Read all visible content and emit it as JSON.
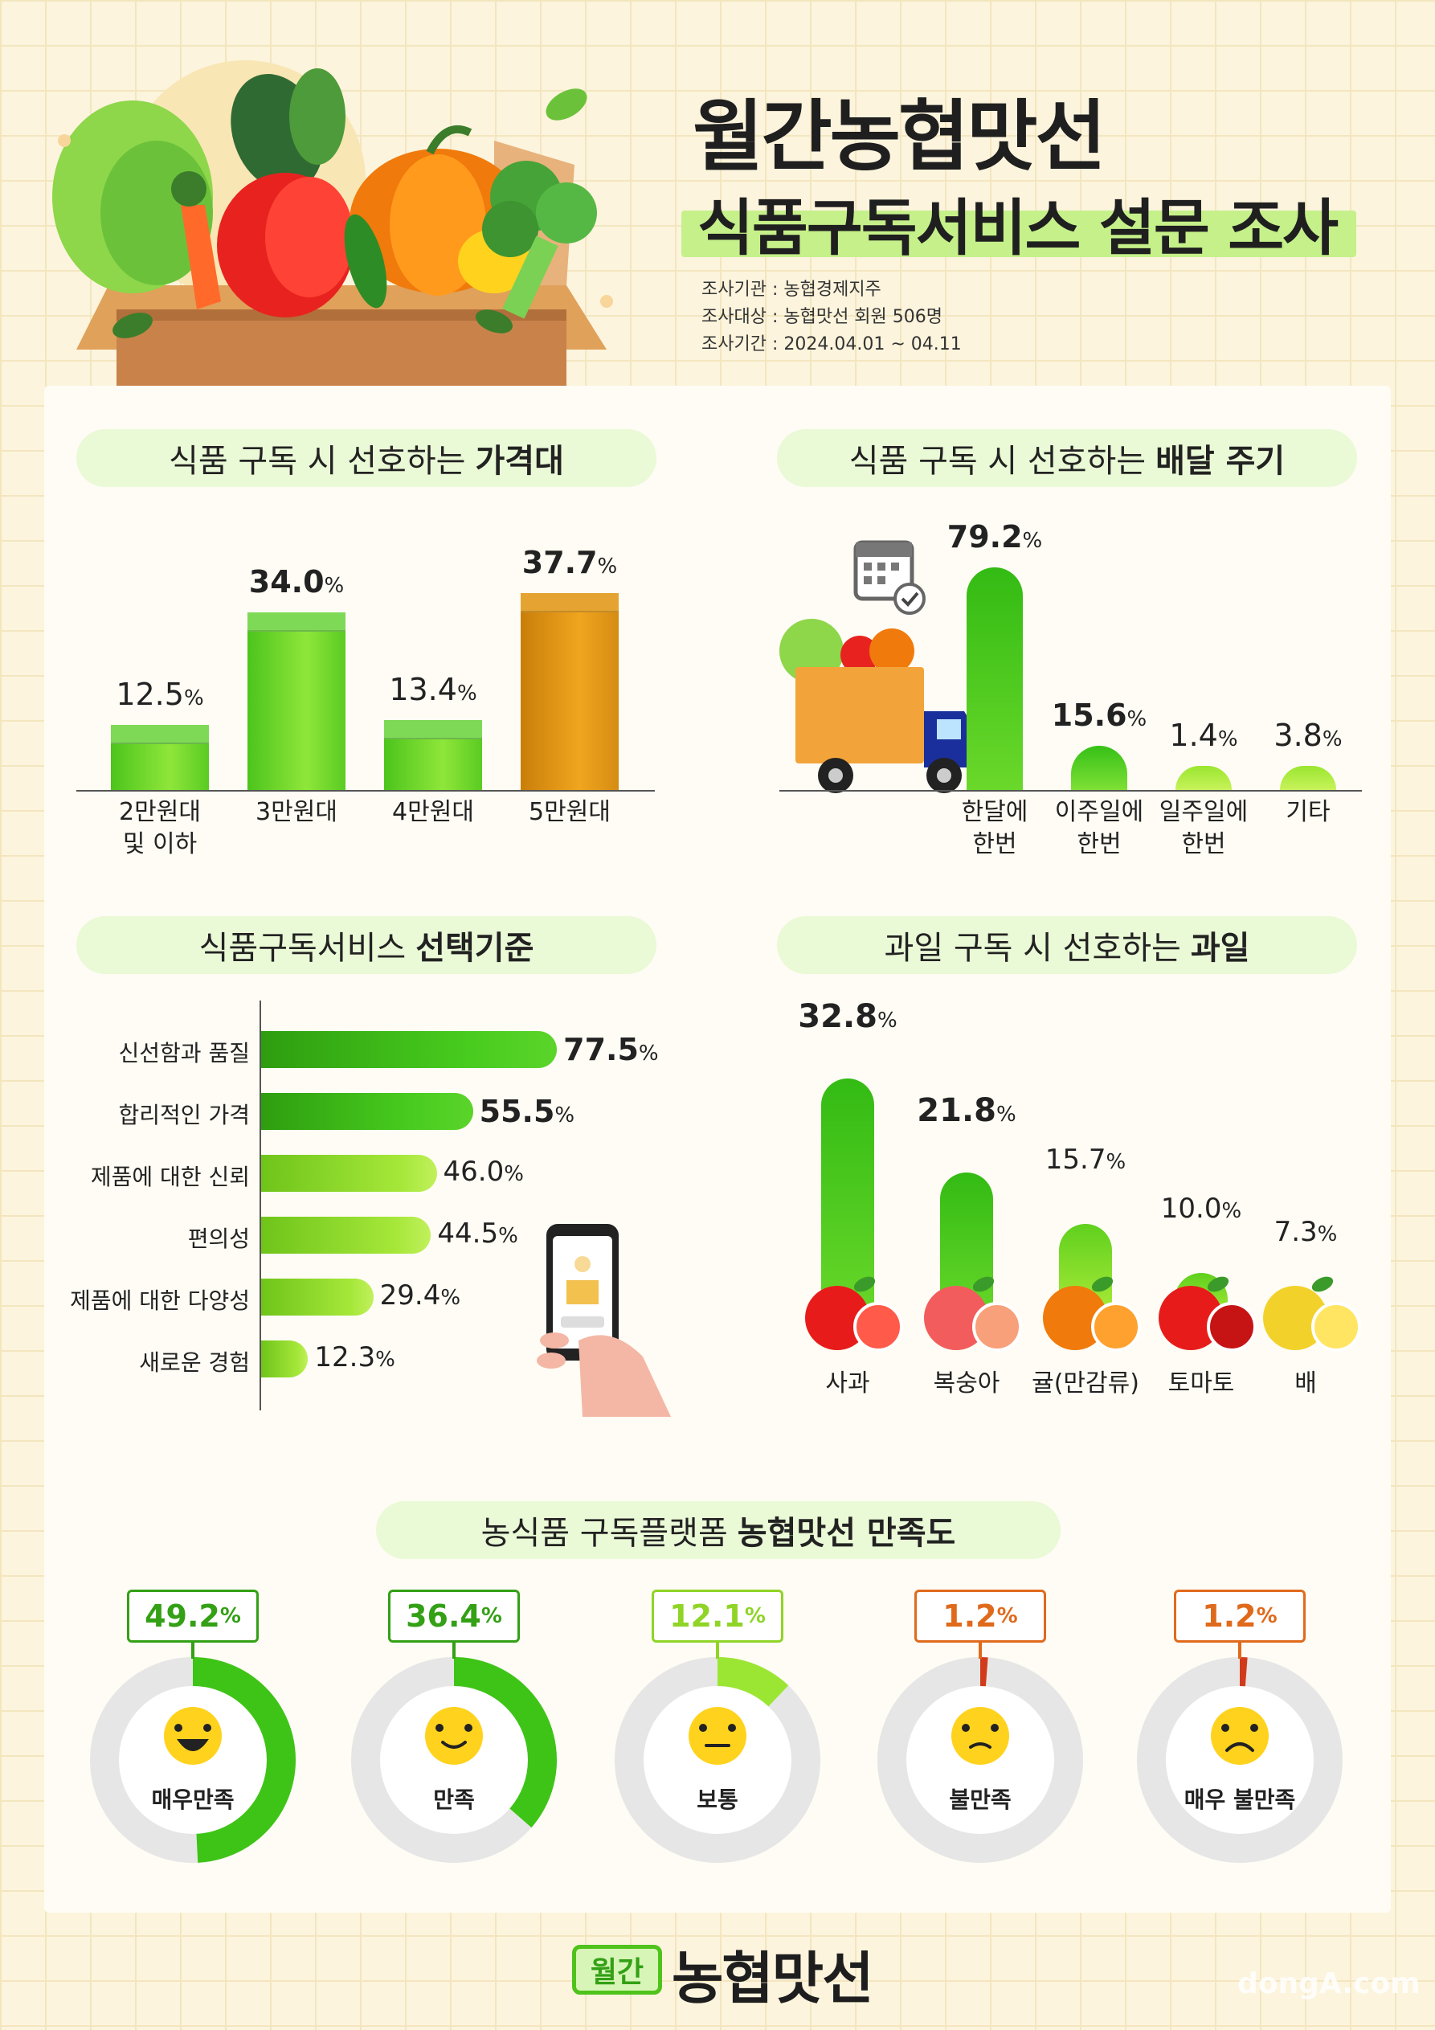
{
  "header": {
    "title_line1": "월간농협맛선",
    "title_line2": "식품구독서비스 설문 조사",
    "meta": [
      "조사기관 : 농협경제지주",
      "조사대상 : 농협맛선 회원 506명",
      "조사기간 : 2024.04.01 ~ 04.11"
    ]
  },
  "sections": {
    "price": {
      "title_plain": "식품 구독 시 선호하는",
      "title_bold": "가격대"
    },
    "delivery": {
      "title_plain": "식품 구독 시 선호하는",
      "title_bold": "배달 주기"
    },
    "criteria": {
      "title_plain": "식품구독서비스",
      "title_bold": "선택기준"
    },
    "fruit": {
      "title_plain": "과일 구독 시 선호하는",
      "title_bold": "과일"
    },
    "satisfaction": {
      "title_plain": "농식품 구독플랫폼",
      "title_bold": "농협맛선 만족도"
    }
  },
  "colors": {
    "green": "#3ec417",
    "lightgreen": "#b7ee3c",
    "orange": "#d98a0e",
    "bg": "#fcf4dd",
    "pill": "#eaf9d6",
    "gray": "#e6e6e6",
    "neg": "#e06a1c"
  },
  "chart_data": [
    {
      "type": "bar",
      "title": "식품 구독 시 선호하는 가격대",
      "categories": [
        "2만원대\n및 이하",
        "3만원대",
        "4만원대",
        "5만원대"
      ],
      "values": [
        12.5,
        34.0,
        13.4,
        37.7
      ],
      "value_labels": [
        "12.5",
        "34.0",
        "13.4",
        "37.7"
      ],
      "unit": "%"
    },
    {
      "type": "bar",
      "title": "식품 구독 시 선호하는 배달 주기",
      "categories": [
        "한달에\n한번",
        "이주일에\n한번",
        "일주일에\n한번",
        "기타"
      ],
      "values": [
        79.2,
        15.6,
        1.4,
        3.8
      ],
      "value_labels": [
        "79.2",
        "15.6",
        "1.4",
        "3.8"
      ],
      "unit": "%"
    },
    {
      "type": "bar",
      "orientation": "horizontal",
      "title": "식품구독서비스 선택기준",
      "categories": [
        "신선함과 품질",
        "합리적인 가격",
        "제품에 대한 신뢰",
        "편의성",
        "제품에 대한 다양성",
        "새로운 경험"
      ],
      "values": [
        77.5,
        55.5,
        46.0,
        44.5,
        29.4,
        12.3
      ],
      "value_labels": [
        "77.5",
        "55.5",
        "46.0",
        "44.5",
        "29.4",
        "12.3"
      ],
      "unit": "%"
    },
    {
      "type": "bar",
      "title": "과일 구독 시 선호하는 과일",
      "categories": [
        "사과",
        "복숭아",
        "귤(만감류)",
        "토마토",
        "배"
      ],
      "values": [
        32.8,
        21.8,
        15.7,
        10.0,
        7.3
      ],
      "value_labels": [
        "32.8",
        "21.8",
        "15.7",
        "10.0",
        "7.3"
      ],
      "unit": "%"
    },
    {
      "type": "pie",
      "title": "농식품 구독플랫폼 농협맛선 만족도",
      "categories": [
        "매우만족",
        "만족",
        "보통",
        "불만족",
        "매우 불만족"
      ],
      "values": [
        49.2,
        36.4,
        12.1,
        1.2,
        1.2
      ],
      "value_labels": [
        "49.2",
        "36.4",
        "12.1",
        "1.2",
        "1.2"
      ],
      "unit": "%"
    }
  ],
  "footer": {
    "logo_box": "월간",
    "logo_text": "농협맛선",
    "watermark": "dongA.com"
  }
}
